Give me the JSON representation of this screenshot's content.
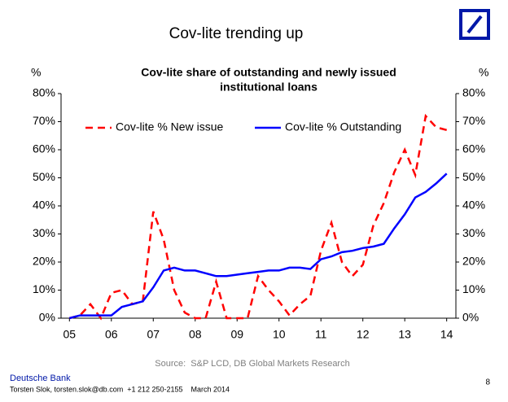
{
  "slide": {
    "title": "Cov-lite trending up",
    "source": "Source:  S&P LCD, DB Global Markets Research",
    "footer_org": "Deutsche Bank",
    "footer_contact": "Torsten Slok, torsten.slok@db.com  +1 212 250-2155    March 2014",
    "page": "8"
  },
  "chart_data": {
    "type": "line",
    "title": [
      "Cov-lite share of outstanding and newly issued",
      "institutional loans"
    ],
    "y_label": "%",
    "y2_label": "%",
    "x": [
      2005,
      2005.25,
      2005.5,
      2005.75,
      2006,
      2006.25,
      2006.5,
      2006.75,
      2007,
      2007.25,
      2007.5,
      2007.75,
      2008,
      2008.25,
      2008.5,
      2008.75,
      2009,
      2009.25,
      2009.5,
      2009.75,
      2010,
      2010.25,
      2010.5,
      2010.75,
      2011,
      2011.25,
      2011.5,
      2011.75,
      2012,
      2012.25,
      2012.5,
      2012.75,
      2013,
      2013.25,
      2013.5,
      2013.75,
      2014
    ],
    "series": [
      {
        "name": "Cov-lite % New issue",
        "color": "#ff0000",
        "dashed": true,
        "values": [
          0,
          1,
          5,
          0,
          9,
          10,
          5,
          6,
          38,
          28,
          10,
          2,
          0,
          0,
          13,
          0,
          0,
          0,
          15,
          10,
          6,
          1,
          5,
          8,
          24,
          34,
          20,
          15,
          19,
          33,
          41,
          52,
          60,
          51,
          72,
          68,
          67
        ]
      },
      {
        "name": "Cov-lite % Outstanding",
        "color": "#0000ff",
        "dashed": false,
        "values": [
          0,
          1,
          1,
          1,
          1,
          4,
          5,
          6,
          11,
          17,
          18,
          17,
          17,
          16,
          15,
          15,
          15.5,
          16,
          16.5,
          17,
          17,
          18,
          18,
          17.5,
          21,
          22,
          23.5,
          24,
          25,
          25.5,
          26.5,
          32,
          37,
          43,
          45,
          48,
          51.5
        ]
      }
    ],
    "xlim": [
      2004.8,
      2014.22
    ],
    "xticks": [
      {
        "value": 2005,
        "label": "05"
      },
      {
        "value": 2006,
        "label": "06"
      },
      {
        "value": 2007,
        "label": "07"
      },
      {
        "value": 2008,
        "label": "08"
      },
      {
        "value": 2009,
        "label": "09"
      },
      {
        "value": 2010,
        "label": "10"
      },
      {
        "value": 2011,
        "label": "11"
      },
      {
        "value": 2012,
        "label": "12"
      },
      {
        "value": 2013,
        "label": "13"
      },
      {
        "value": 2014,
        "label": "14"
      }
    ],
    "ylim": [
      0,
      80
    ],
    "yticks": [
      {
        "value": 0,
        "label": "0%"
      },
      {
        "value": 10,
        "label": "10%"
      },
      {
        "value": 20,
        "label": "20%"
      },
      {
        "value": 30,
        "label": "30%"
      },
      {
        "value": 40,
        "label": "40%"
      },
      {
        "value": 50,
        "label": "50%"
      },
      {
        "value": 60,
        "label": "60%"
      },
      {
        "value": 70,
        "label": "70%"
      },
      {
        "value": 80,
        "label": "80%"
      }
    ],
    "y2lim": [
      0,
      80
    ],
    "y2ticks": [
      {
        "value": 0,
        "label": "0%"
      },
      {
        "value": 10,
        "label": "10%"
      },
      {
        "value": 20,
        "label": "20%"
      },
      {
        "value": 30,
        "label": "30%"
      },
      {
        "value": 40,
        "label": "40%"
      },
      {
        "value": 50,
        "label": "50%"
      },
      {
        "value": 60,
        "label": "60%"
      },
      {
        "value": 70,
        "label": "70%"
      },
      {
        "value": 80,
        "label": "80%"
      }
    ],
    "grid": false,
    "legend": "top"
  }
}
